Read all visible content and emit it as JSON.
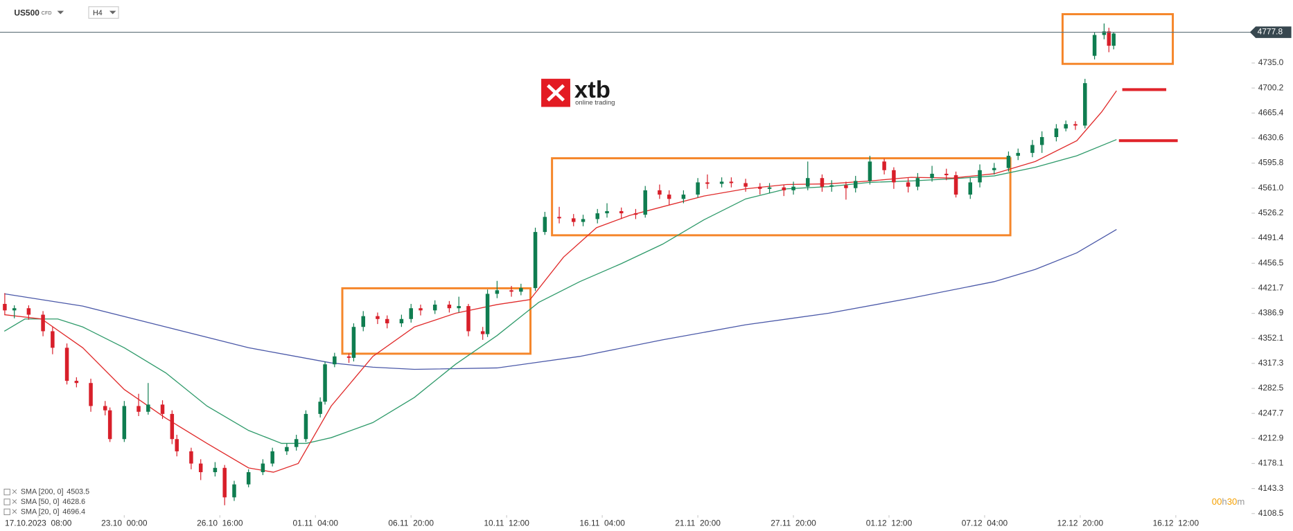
{
  "header": {
    "symbol": "US500",
    "kind": "CFD",
    "timeframe": "H4"
  },
  "logo": {
    "name": "xtb",
    "tagline": "online trading"
  },
  "timer": [
    "00",
    "h",
    "30",
    "m"
  ],
  "chart_data": {
    "type": "candlestick",
    "xlim": [
      0,
      270
    ],
    "ylim": [
      4108.5,
      4822.5
    ],
    "xticks": [
      {
        "value": 8,
        "label": "17.10.2023  08:00"
      },
      {
        "value": 26,
        "label": "23.10  00:00"
      },
      {
        "value": 46,
        "label": "26.10  16:00"
      },
      {
        "value": 66,
        "label": "01.11  04:00"
      },
      {
        "value": 86,
        "label": "06.11  20:00"
      },
      {
        "value": 106,
        "label": "10.11  12:00"
      },
      {
        "value": 126,
        "label": "16.11  04:00"
      },
      {
        "value": 146,
        "label": "21.11  20:00"
      },
      {
        "value": 166,
        "label": "27.11  20:00"
      },
      {
        "value": 186,
        "label": "01.12  12:00"
      },
      {
        "value": 206,
        "label": "07.12  04:00"
      },
      {
        "value": 226,
        "label": "12.12  20:00"
      },
      {
        "value": 246,
        "label": "16.12  12:00"
      }
    ],
    "yticks": [
      4108.5,
      4143.3,
      4178.1,
      4212.9,
      4247.7,
      4282.5,
      4317.3,
      4352.1,
      4386.9,
      4421.7,
      4456.5,
      4491.4,
      4526.2,
      {
        "value": 4561,
        "label": "4561.0"
      },
      4595.8,
      4630.6,
      4665.4,
      4700.2,
      {
        "value": 4735,
        "label": "4735.0"
      }
    ],
    "grid": false,
    "up_color": "#0f7d50",
    "down_color": "#d81f2a",
    "last_price": 4777.8,
    "candles": {
      "x": [
        1,
        3,
        6,
        9,
        11,
        14,
        16,
        19,
        22,
        23,
        26,
        29,
        31,
        34,
        36,
        37,
        40,
        42,
        45,
        47,
        49,
        52,
        55,
        57,
        60,
        62,
        64,
        67,
        68,
        70,
        73,
        74,
        76,
        79,
        81,
        84,
        86,
        88,
        91,
        94,
        96,
        98,
        101,
        102,
        104,
        107,
        109,
        112,
        114,
        117,
        120,
        122,
        125,
        127,
        130,
        133,
        135,
        138,
        140,
        143,
        146,
        148,
        151,
        153,
        156,
        159,
        161,
        164,
        166,
        169,
        172,
        174,
        177,
        179,
        182,
        185,
        187,
        190,
        192,
        195,
        198,
        200,
        203,
        205,
        208,
        211,
        213,
        216,
        218,
        221,
        223,
        225,
        227,
        229,
        231,
        232,
        233
      ],
      "open": [
        4400,
        4391,
        4394,
        4385,
        4362,
        4339,
        4293,
        4290,
        4258,
        4252,
        4212,
        4258,
        4250,
        4260,
        4247,
        4212,
        4195,
        4178,
        4166,
        4172,
        4131,
        4149,
        4166,
        4178,
        4195,
        4201,
        4212,
        4247,
        4264,
        4316,
        4327,
        4325,
        4368,
        4383,
        4379,
        4373,
        4379,
        4394,
        4391,
        4399,
        4394,
        4397,
        4362,
        4358,
        4414,
        4419,
        4417,
        4422,
        4500,
        4521,
        4519,
        4514,
        4518,
        4526,
        4529,
        4526,
        4524,
        4558,
        4552,
        4546,
        4552,
        4569,
        4567,
        4570,
        4568,
        4563,
        4560,
        4562,
        4558,
        4563,
        4575,
        4563,
        4565,
        4561,
        4571,
        4598,
        4586,
        4569,
        4563,
        4575,
        4581,
        4579,
        4552,
        4569,
        4586,
        4589,
        4606,
        4610,
        4621,
        4632,
        4644,
        4650,
        4648,
        4745,
        4774,
        4779,
        4759
      ],
      "high": [
        4415,
        4398,
        4398,
        4390,
        4368,
        4345,
        4298,
        4296,
        4265,
        4256,
        4265,
        4275,
        4290,
        4266,
        4252,
        4218,
        4200,
        4184,
        4180,
        4176,
        4154,
        4170,
        4184,
        4200,
        4206,
        4218,
        4252,
        4270,
        4320,
        4332,
        4331,
        4373,
        4390,
        4388,
        4384,
        4385,
        4400,
        4399,
        4405,
        4404,
        4410,
        4400,
        4368,
        4420,
        4432,
        4425,
        4428,
        4506,
        4528,
        4535,
        4525,
        4524,
        4532,
        4540,
        4534,
        4532,
        4564,
        4566,
        4558,
        4558,
        4575,
        4580,
        4576,
        4576,
        4574,
        4568,
        4568,
        4566,
        4570,
        4598,
        4580,
        4572,
        4570,
        4578,
        4606,
        4602,
        4590,
        4575,
        4582,
        4592,
        4588,
        4584,
        4575,
        4594,
        4596,
        4612,
        4616,
        4628,
        4640,
        4650,
        4655,
        4654,
        4713,
        4778,
        4790,
        4784,
        4778
      ],
      "low": [
        4385,
        4380,
        4378,
        4355,
        4330,
        4288,
        4284,
        4250,
        4245,
        4208,
        4208,
        4244,
        4246,
        4240,
        4205,
        4188,
        4170,
        4155,
        4160,
        4120,
        4126,
        4145,
        4162,
        4174,
        4190,
        4196,
        4208,
        4242,
        4260,
        4312,
        4318,
        4320,
        4362,
        4372,
        4366,
        4368,
        4374,
        4384,
        4386,
        4388,
        4388,
        4355,
        4350,
        4354,
        4408,
        4410,
        4412,
        4418,
        4496,
        4512,
        4508,
        4508,
        4512,
        4520,
        4518,
        4518,
        4520,
        4546,
        4538,
        4540,
        4548,
        4560,
        4562,
        4562,
        4556,
        4552,
        4554,
        4550,
        4552,
        4558,
        4556,
        4556,
        4545,
        4555,
        4566,
        4580,
        4560,
        4555,
        4558,
        4570,
        4572,
        4548,
        4546,
        4562,
        4580,
        4584,
        4600,
        4604,
        4610,
        4626,
        4640,
        4642,
        4644,
        4740,
        4768,
        4750,
        4754
      ],
      "close": [
        4391,
        4394,
        4385,
        4362,
        4339,
        4293,
        4290,
        4258,
        4252,
        4212,
        4258,
        4250,
        4260,
        4247,
        4212,
        4195,
        4178,
        4166,
        4172,
        4131,
        4149,
        4166,
        4178,
        4195,
        4201,
        4212,
        4247,
        4264,
        4316,
        4327,
        4325,
        4368,
        4383,
        4379,
        4373,
        4379,
        4394,
        4391,
        4399,
        4394,
        4397,
        4362,
        4358,
        4414,
        4419,
        4417,
        4422,
        4500,
        4521,
        4519,
        4514,
        4518,
        4526,
        4529,
        4526,
        4524,
        4558,
        4552,
        4546,
        4552,
        4569,
        4567,
        4570,
        4568,
        4563,
        4560,
        4562,
        4558,
        4563,
        4575,
        4563,
        4565,
        4561,
        4571,
        4598,
        4586,
        4569,
        4563,
        4575,
        4581,
        4579,
        4552,
        4569,
        4586,
        4589,
        4606,
        4610,
        4621,
        4632,
        4644,
        4650,
        4648,
        4707,
        4774,
        4779,
        4759,
        4776
      ]
    },
    "series": [
      {
        "name": "SMA [200,  0]",
        "color": "#4a58a8",
        "x": [
          0.9,
          17.3,
          34.7,
          52.0,
          69.3,
          78.0,
          86.7,
          104.0,
          121.3,
          138.6,
          156.0,
          173.3,
          190.6,
          208.0,
          216.6,
          225.3,
          233.6
        ],
        "values": [
          4414,
          4397,
          4368,
          4339,
          4318,
          4312,
          4309,
          4311,
          4327,
          4350,
          4371,
          4387,
          4408,
          4431,
          4448,
          4471,
          4503.5
        ]
      },
      {
        "name": "SMA [50,  0]",
        "color": "#2e9a6a",
        "x": [
          0.9,
          5.2,
          12.1,
          17.3,
          26.0,
          34.7,
          43.3,
          52.0,
          58.9,
          64.1,
          69.3,
          78.0,
          86.7,
          95.3,
          104.0,
          112.7,
          121.3,
          130.0,
          138.6,
          147.3,
          156.0,
          164.6,
          173.3,
          182.0,
          190.6,
          199.3,
          208.0,
          216.6,
          225.3,
          233.6
        ],
        "values": [
          4362,
          4379,
          4379,
          4368,
          4339,
          4304,
          4258,
          4224,
          4206,
          4206,
          4214,
          4235,
          4270,
          4316,
          4356,
          4402,
          4431,
          4456,
          4483,
          4517,
          4546,
          4560,
          4563,
          4569,
          4571,
          4574,
          4578,
          4590,
          4606,
          4628.6
        ]
      },
      {
        "name": "SMA [20,  0]",
        "color": "#e02a2a",
        "x": [
          0.9,
          8.7,
          17.3,
          26.0,
          34.7,
          43.3,
          52.0,
          57.2,
          62.4,
          69.3,
          78.0,
          86.7,
          95.3,
          104.0,
          110.9,
          117.9,
          124.8,
          131.7,
          138.6,
          147.3,
          156.0,
          164.6,
          173.3,
          182.0,
          190.6,
          199.3,
          208.0,
          216.6,
          225.3,
          230.5,
          233.6
        ],
        "values": [
          4385,
          4379,
          4339,
          4281,
          4241,
          4206,
          4172,
          4166,
          4178,
          4258,
          4327,
          4368,
          4387,
          4399,
          4406,
          4465,
          4506,
          4523,
          4535,
          4550,
          4560,
          4566,
          4567,
          4571,
          4576,
          4575,
          4581,
          4598,
          4627,
          4667,
          4696.4
        ]
      }
    ],
    "levels": [
      {
        "value": 4698,
        "x": [
          234.8,
          244
        ],
        "color": "#e0242b"
      },
      {
        "value": 4627,
        "x": [
          234.1,
          246.4
        ],
        "color": "#e0242b"
      }
    ]
  }
}
